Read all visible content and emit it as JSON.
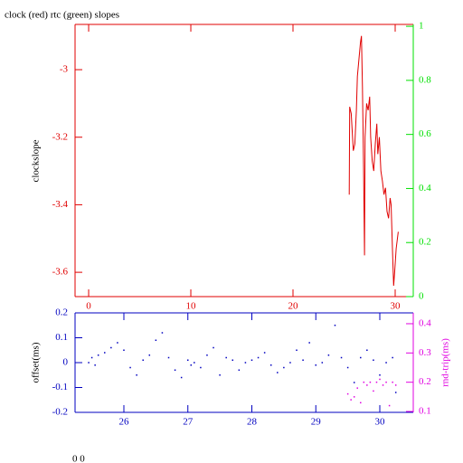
{
  "chart_data": [
    {
      "type": "line",
      "title": "clock (red) rtc (green) slopes",
      "ylabel": "clockslope",
      "xlim": [
        -1.33,
        31.77
      ],
      "xticks": [
        0,
        10,
        20,
        30
      ],
      "ylim": [
        -3.672,
        -2.866
      ],
      "yticks": [
        -3,
        -3.2,
        -3.4,
        -3.6
      ],
      "y2lim": [
        0,
        1.007
      ],
      "y2ticks": [
        0,
        0.2,
        0.4,
        0.6,
        0.8,
        1
      ],
      "axis_colors": {
        "x": "#e00000",
        "y": "#e00000",
        "y2": "#00e000"
      },
      "series": [
        {
          "color": "#e00000",
          "x": [
            25.5,
            25.55,
            25.7,
            25.9,
            26.05,
            26.2,
            26.3,
            26.45,
            26.6,
            26.7,
            26.8,
            26.9,
            27.0,
            27.05,
            27.2,
            27.35,
            27.5,
            27.6,
            27.75,
            27.9,
            28.05,
            28.2,
            28.3,
            28.45,
            28.6,
            28.75,
            28.9,
            29.05,
            29.2,
            29.35,
            29.5,
            29.6,
            29.75,
            29.85,
            29.95,
            30.1,
            30.3
          ],
          "values": [
            -3.37,
            -3.11,
            -3.13,
            -3.24,
            -3.22,
            -3.12,
            -3.02,
            -2.97,
            -2.92,
            -2.9,
            -3.05,
            -3.28,
            -3.55,
            -3.2,
            -3.1,
            -3.12,
            -3.08,
            -3.2,
            -3.27,
            -3.3,
            -3.22,
            -3.16,
            -3.25,
            -3.2,
            -3.3,
            -3.33,
            -3.37,
            -3.35,
            -3.42,
            -3.44,
            -3.38,
            -3.4,
            -3.55,
            -3.64,
            -3.6,
            -3.53,
            -3.48
          ]
        }
      ]
    },
    {
      "type": "scatter",
      "ylabel": "offset(ms)",
      "y2label": "rnd-trip(ms)",
      "xlim": [
        25.237,
        30.523
      ],
      "xticks": [
        26,
        27,
        28,
        29,
        30
      ],
      "ylim": [
        -0.2,
        0.2
      ],
      "yticks": [
        -0.2,
        -0.1,
        0,
        0.1,
        0.2
      ],
      "y2lim": [
        0.097,
        0.437
      ],
      "y2ticks": [
        0.1,
        0.2,
        0.3,
        0.4
      ],
      "axis_colors": {
        "x": "#0000c0",
        "y": "#0000c0",
        "y2": "#e000e0"
      },
      "series": [
        {
          "color": "#0000c0",
          "x": [
            25.45,
            25.5,
            25.55,
            25.6,
            25.7,
            25.8,
            25.9,
            26.0,
            26.1,
            26.2,
            26.3,
            26.4,
            26.5,
            26.6,
            26.7,
            26.8,
            26.9,
            27.0,
            27.05,
            27.1,
            27.2,
            27.3,
            27.4,
            27.5,
            27.6,
            27.7,
            27.8,
            27.9,
            28.0,
            28.1,
            28.2,
            28.3,
            28.4,
            28.5,
            28.6,
            28.7,
            28.8,
            28.9,
            29.0,
            29.1,
            29.2,
            29.3,
            29.4,
            29.5,
            29.6,
            29.7,
            29.8,
            29.9,
            30.0,
            30.1,
            30.2,
            30.25
          ],
          "values": [
            0.0,
            0.02,
            -0.01,
            0.03,
            0.04,
            0.06,
            0.08,
            0.05,
            -0.02,
            -0.05,
            0.01,
            0.03,
            0.09,
            0.12,
            0.02,
            -0.03,
            -0.06,
            0.01,
            -0.01,
            0.0,
            -0.02,
            0.03,
            0.06,
            -0.05,
            0.02,
            0.01,
            -0.03,
            0.0,
            0.01,
            0.02,
            0.04,
            -0.01,
            -0.04,
            -0.02,
            0.0,
            0.05,
            0.01,
            0.08,
            -0.01,
            0.0,
            0.03,
            0.15,
            0.02,
            -0.02,
            -0.08,
            0.02,
            0.05,
            0.01,
            -0.05,
            0.0,
            0.02,
            -0.12
          ]
        },
        {
          "color": "#e000e0",
          "axis": "y2",
          "x": [
            29.5,
            29.55,
            29.6,
            29.65,
            29.7,
            29.75,
            29.8,
            29.85,
            29.9,
            29.95,
            30.0,
            30.05,
            30.1,
            30.15,
            30.2,
            30.25
          ],
          "values": [
            0.16,
            0.14,
            0.15,
            0.18,
            0.13,
            0.2,
            0.19,
            0.2,
            0.17,
            0.2,
            0.21,
            0.19,
            0.2,
            0.12,
            0.2,
            0.19
          ]
        }
      ]
    }
  ],
  "footer": "0 0"
}
